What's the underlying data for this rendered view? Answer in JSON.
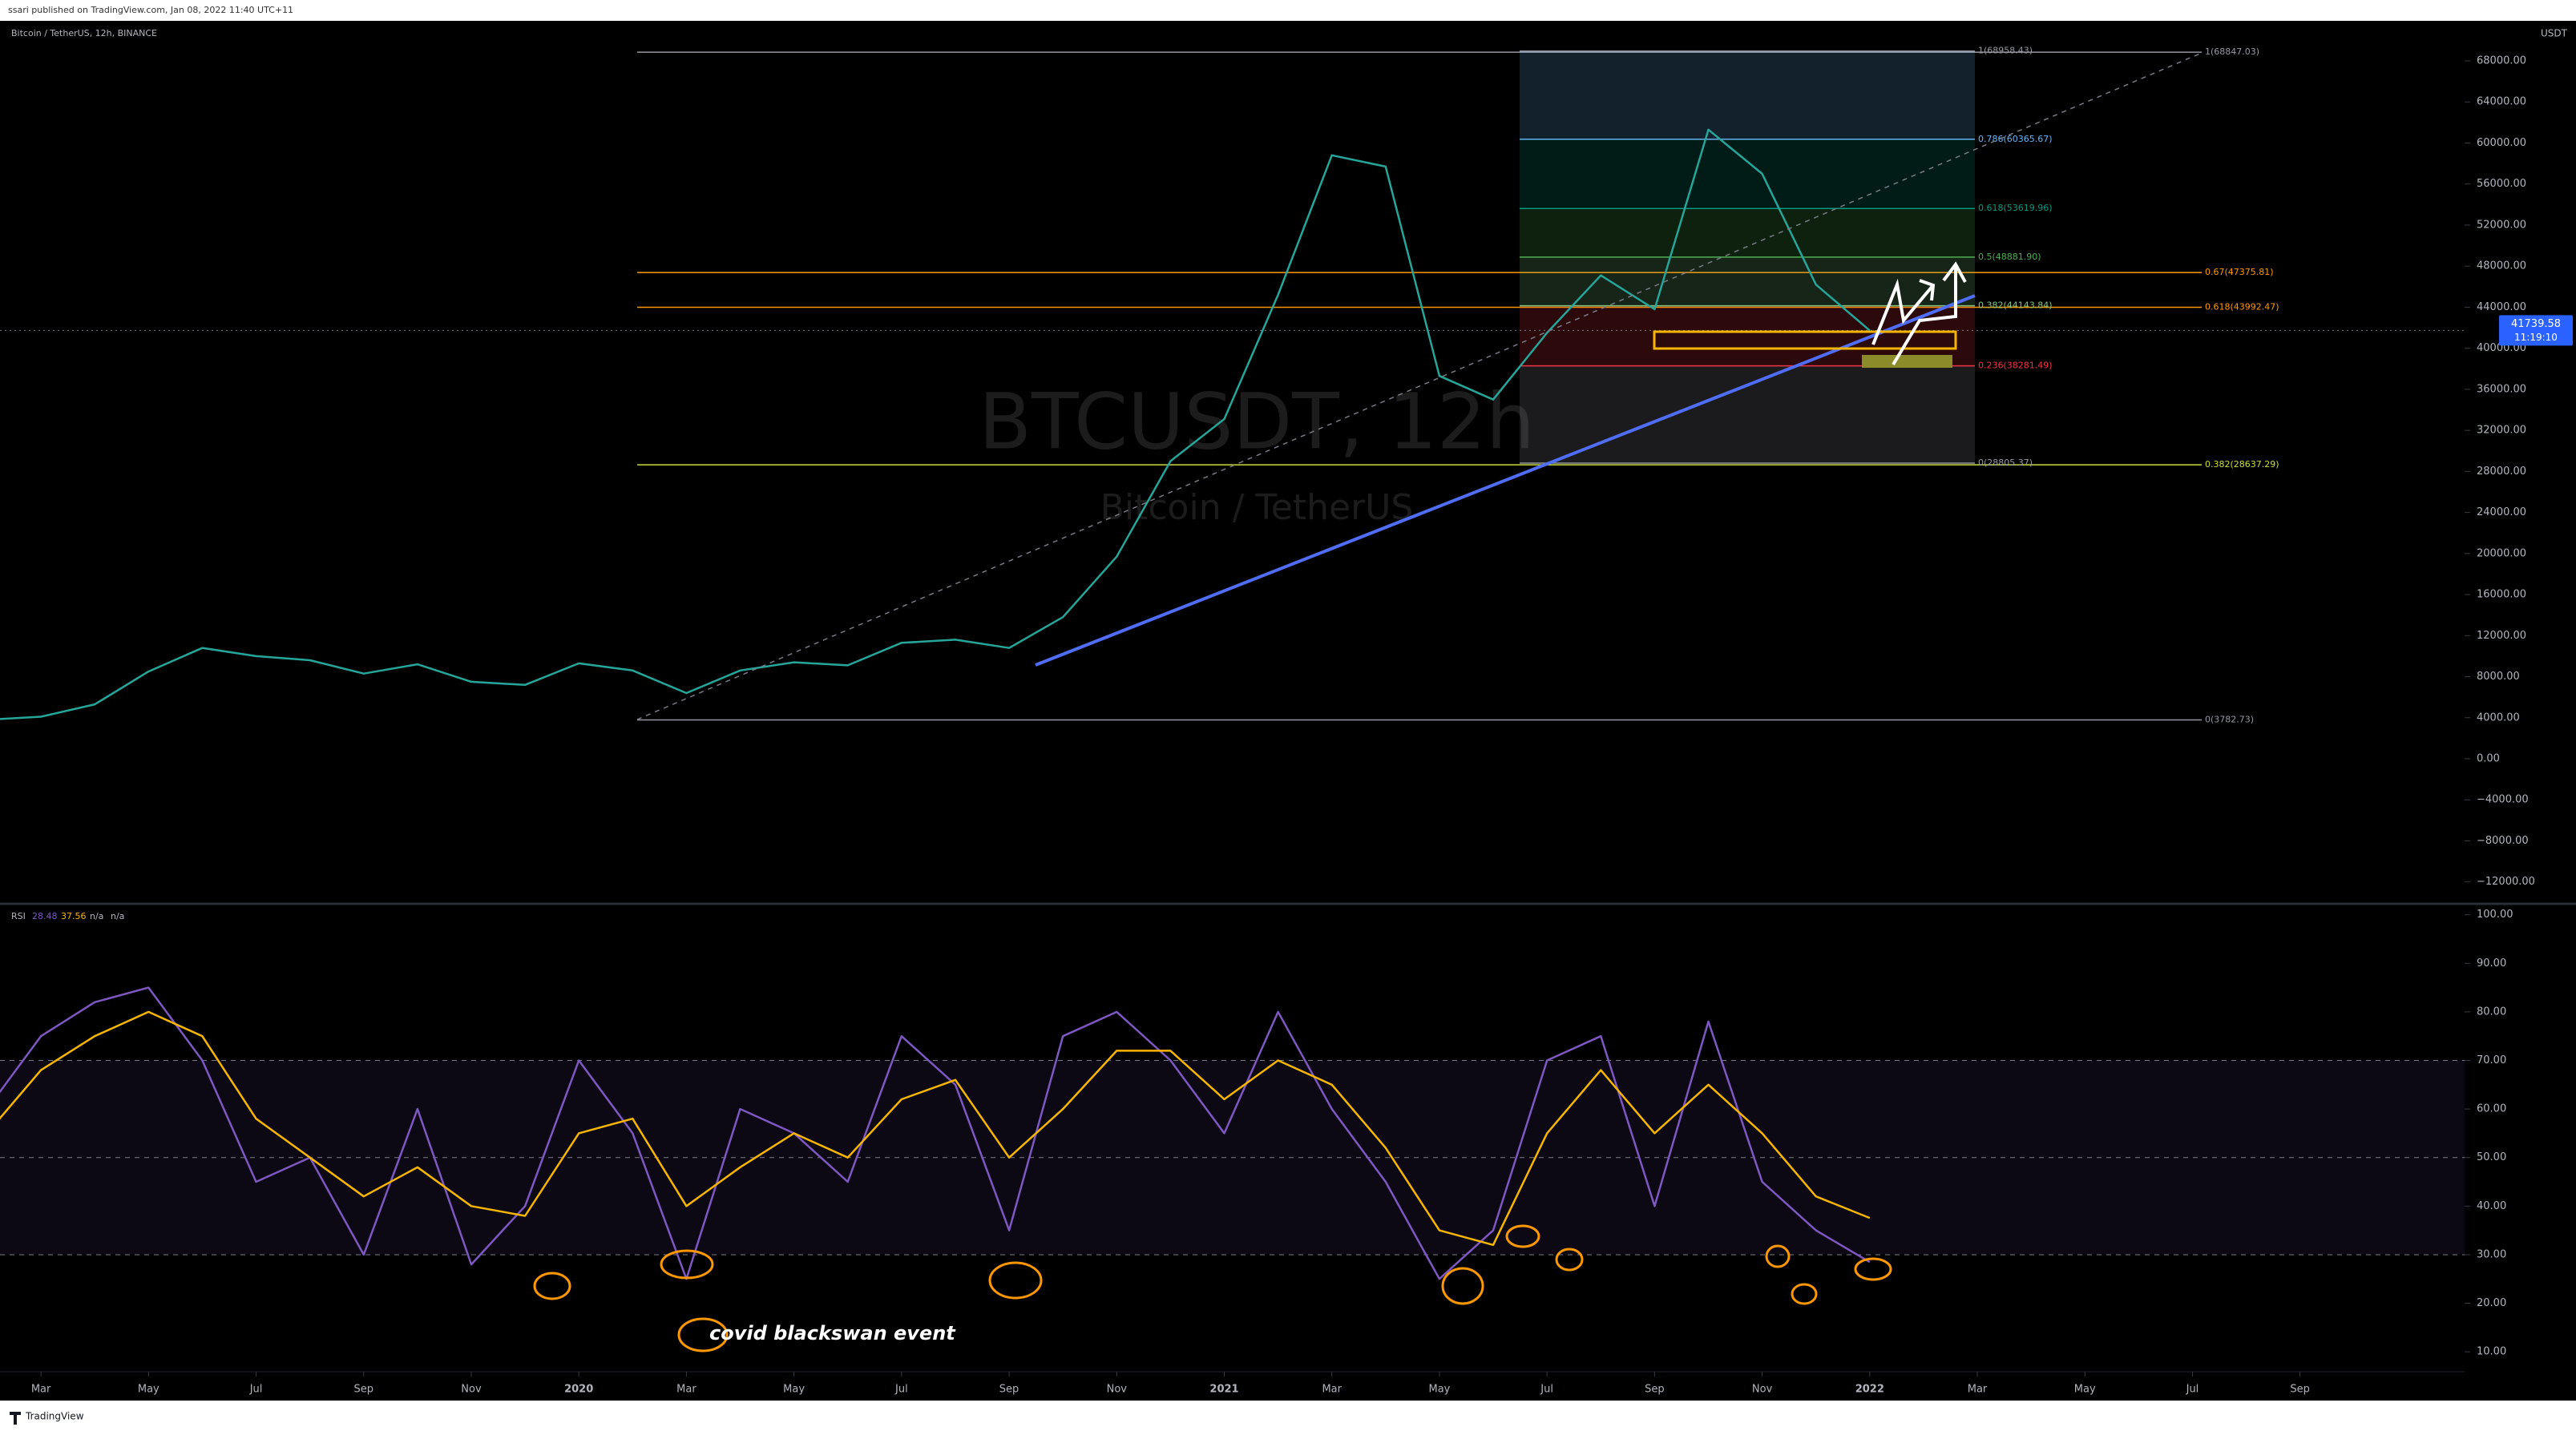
{
  "header": "ssari published on TradingView.com, Jan 08, 2022 11:40 UTC+11",
  "footer": "TradingView",
  "chart_data": [
    {
      "type": "line",
      "title": "Bitcoin / TetherUS, 12h, BINANCE",
      "watermark": "BTCUSDT, 12h",
      "watermark_subtitle": "Bitcoin / TetherUS",
      "currency": "USDT",
      "countdown": "11:19:10",
      "color": "#26a69a",
      "x": [
        "2019-02",
        "2019-03",
        "2019-04",
        "2019-05",
        "2019-06",
        "2019-07",
        "2019-08",
        "2019-09",
        "2019-10",
        "2019-11",
        "2019-12",
        "2020-01",
        "2020-02",
        "2020-03",
        "2020-04",
        "2020-05",
        "2020-06",
        "2020-07",
        "2020-08",
        "2020-09",
        "2020-10",
        "2020-11",
        "2020-12",
        "2021-01",
        "2021-02",
        "2021-03",
        "2021-04",
        "2021-05",
        "2021-06",
        "2021-07",
        "2021-08",
        "2021-09",
        "2021-10",
        "2021-11",
        "2021-12",
        "2022-01"
      ],
      "values": [
        3800,
        4100,
        5300,
        8500,
        10800,
        10000,
        9600,
        8300,
        9200,
        7500,
        7200,
        9300,
        8600,
        6400,
        8600,
        9400,
        9100,
        11300,
        11600,
        10800,
        13800,
        19700,
        29000,
        33100,
        45200,
        58800,
        57700,
        37300,
        35000,
        41500,
        47100,
        43800,
        61300,
        57000,
        46200,
        41739.58
      ],
      "xlim": [
        "2019-02",
        "2022-12"
      ],
      "ylim": [
        -13820,
        71670
      ],
      "yticks": [
        {
          "value": -12000,
          "label": "−12000.00"
        },
        {
          "value": -8000,
          "label": "−8000.00"
        },
        {
          "value": -4000,
          "label": "−4000.00"
        },
        {
          "value": 0,
          "label": "0.00"
        },
        {
          "value": 4000,
          "label": "4000.00"
        },
        {
          "value": 8000,
          "label": "8000.00"
        },
        {
          "value": 12000,
          "label": "12000.00"
        },
        {
          "value": 16000,
          "label": "16000.00"
        },
        {
          "value": 20000,
          "label": "20000.00"
        },
        {
          "value": 24000,
          "label": "24000.00"
        },
        {
          "value": 28000,
          "label": "28000.00"
        },
        {
          "value": 32000,
          "label": "32000.00"
        },
        {
          "value": 36000,
          "label": "36000.00"
        },
        {
          "value": 40000,
          "label": "40000.00"
        },
        {
          "value": 44000,
          "label": "44000.00"
        },
        {
          "value": 48000,
          "label": "48000.00"
        },
        {
          "value": 52000,
          "label": "52000.00"
        },
        {
          "value": 56000,
          "label": "56000.00"
        },
        {
          "value": 60000,
          "label": "60000.00"
        },
        {
          "value": 64000,
          "label": "64000.00"
        },
        {
          "value": 68000,
          "label": "68000.00"
        }
      ],
      "fib_retracement": [
        {
          "label": "1(68958.43)",
          "value": 68958.43,
          "color": "#9598a1"
        },
        {
          "label": "0.786(60365.67)",
          "value": 60365.67,
          "color": "#64b5f6"
        },
        {
          "label": "0.618(53619.96)",
          "value": 53619.96,
          "color": "#089981"
        },
        {
          "label": "0.5(48881.90)",
          "value": 48881.9,
          "color": "#4caf50"
        },
        {
          "label": "0.382(44143.84)",
          "value": 44143.84,
          "color": "#81c784"
        },
        {
          "label": "0.236(38281.49)",
          "value": 38281.49,
          "color": "#f23645"
        },
        {
          "label": "0(28805.37)",
          "value": 28805.37,
          "color": "#9598a1"
        }
      ],
      "fib_extension": [
        {
          "label": "1(68847.03)",
          "value": 68847.03,
          "color": "#9598a1"
        },
        {
          "label": "0.67(47375.81)",
          "value": 47375.81,
          "color": "#ff9800"
        },
        {
          "label": "0.618(43992.47)",
          "value": 43992.47,
          "color": "#ff9800"
        },
        {
          "label": "0.382(28637.29)",
          "value": 28637.29,
          "color": "#cddc39"
        },
        {
          "label": "0(3782.73)",
          "value": 3782.73,
          "color": "#9598a1"
        }
      ]
    },
    {
      "type": "line",
      "title": "RSI",
      "legend_extra": [
        "n/a",
        "n/a"
      ],
      "annotation": "covid blackswan event",
      "x": [
        "2019-02",
        "2019-03",
        "2019-04",
        "2019-05",
        "2019-06",
        "2019-07",
        "2019-08",
        "2019-09",
        "2019-10",
        "2019-11",
        "2019-12",
        "2020-01",
        "2020-02",
        "2020-03",
        "2020-04",
        "2020-05",
        "2020-06",
        "2020-07",
        "2020-08",
        "2020-09",
        "2020-10",
        "2020-11",
        "2020-12",
        "2021-01",
        "2021-02",
        "2021-03",
        "2021-04",
        "2021-05",
        "2021-06",
        "2021-07",
        "2021-08",
        "2021-09",
        "2021-10",
        "2021-11",
        "2021-12",
        "2022-01"
      ],
      "series": [
        {
          "color": "#7e57c2",
          "values": [
            60,
            75,
            82,
            85,
            70,
            45,
            50,
            30,
            60,
            28,
            40,
            70,
            55,
            25,
            60,
            55,
            45,
            75,
            65,
            35,
            75,
            80,
            70,
            55,
            80,
            60,
            45,
            25,
            35,
            70,
            75,
            40,
            78,
            45,
            35,
            28.48
          ]
        },
        {
          "color": "#f7b500",
          "values": [
            55,
            68,
            75,
            80,
            75,
            58,
            50,
            42,
            48,
            40,
            38,
            55,
            58,
            40,
            48,
            55,
            50,
            62,
            66,
            50,
            60,
            72,
            72,
            62,
            70,
            65,
            52,
            35,
            32,
            55,
            68,
            55,
            65,
            55,
            42,
            37.56
          ]
        }
      ],
      "band": [
        30,
        70
      ],
      "midline": 50,
      "xlim": [
        "2019-02",
        "2022-12"
      ],
      "ylim": [
        5.9,
        101.6
      ],
      "yticks": [
        {
          "value": 10,
          "label": "10.00"
        },
        {
          "value": 20,
          "label": "20.00"
        },
        {
          "value": 30,
          "label": "30.00"
        },
        {
          "value": 40,
          "label": "40.00"
        },
        {
          "value": 50,
          "label": "50.00"
        },
        {
          "value": 60,
          "label": "60.00"
        },
        {
          "value": 70,
          "label": "70.00"
        },
        {
          "value": 80,
          "label": "80.00"
        },
        {
          "value": 90,
          "label": "90.00"
        },
        {
          "value": 100,
          "label": "100.00"
        }
      ],
      "xticks": [
        {
          "value": "2019-03",
          "label": "Mar"
        },
        {
          "value": "2019-05",
          "label": "May"
        },
        {
          "value": "2019-07",
          "label": "Jul"
        },
        {
          "value": "2019-09",
          "label": "Sep"
        },
        {
          "value": "2019-11",
          "label": "Nov"
        },
        {
          "value": "2020-01",
          "label": "2020"
        },
        {
          "value": "2020-03",
          "label": "Mar"
        },
        {
          "value": "2020-05",
          "label": "May"
        },
        {
          "value": "2020-07",
          "label": "Jul"
        },
        {
          "value": "2020-09",
          "label": "Sep"
        },
        {
          "value": "2020-11",
          "label": "Nov"
        },
        {
          "value": "2021-01",
          "label": "2021"
        },
        {
          "value": "2021-03",
          "label": "Mar"
        },
        {
          "value": "2021-05",
          "label": "May"
        },
        {
          "value": "2021-07",
          "label": "Jul"
        },
        {
          "value": "2021-09",
          "label": "Sep"
        },
        {
          "value": "2021-11",
          "label": "Nov"
        },
        {
          "value": "2022-01",
          "label": "2022"
        },
        {
          "value": "2022-03",
          "label": "Mar"
        },
        {
          "value": "2022-05",
          "label": "May"
        },
        {
          "value": "2022-07",
          "label": "Jul"
        },
        {
          "value": "2022-09",
          "label": "Sep"
        }
      ]
    }
  ]
}
